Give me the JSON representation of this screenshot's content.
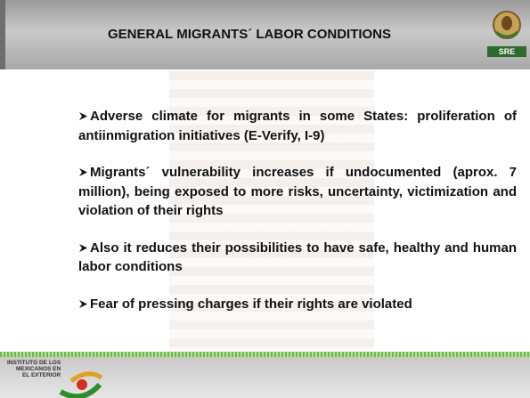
{
  "header": {
    "title": "GENERAL MIGRANTS´ LABOR CONDITIONS",
    "logo_label": "SRE"
  },
  "bullets": [
    "Adverse climate for migrants in some States: proliferation of antiinmigration initiatives (E-Verify, I-9)",
    "Migrants´ vulnerability increases if undocumented (aprox. 7 million), being exposed to more risks, uncertainty, victimization and violation of their rights",
    "Also it reduces their possibilities to have safe, healthy and human labor conditions",
    "Fear of pressing charges if their rights are violated"
  ],
  "footer": {
    "logo_lines": [
      "INSTITUTO DE LOS",
      "MEXICANOS EN",
      "EL EXTERIOR"
    ]
  }
}
